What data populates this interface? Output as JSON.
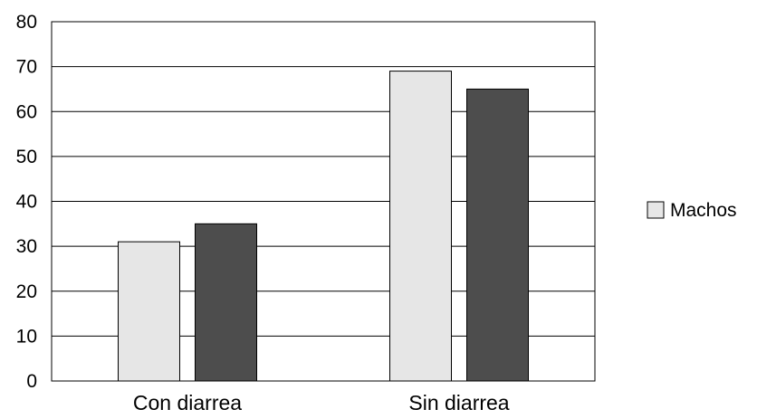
{
  "chart_data": {
    "type": "bar",
    "categories": [
      "Con diarrea",
      "Sin diarrea"
    ],
    "series": [
      {
        "name": "Machos",
        "values": [
          31,
          69
        ],
        "color": "#e6e6e6"
      },
      {
        "values": [
          35,
          65
        ],
        "color": "#4d4d4d"
      }
    ],
    "ylim": [
      0,
      80
    ],
    "yticks": [
      0,
      10,
      20,
      30,
      40,
      50,
      60,
      70,
      80
    ],
    "grid": true,
    "legend_position": "right"
  }
}
